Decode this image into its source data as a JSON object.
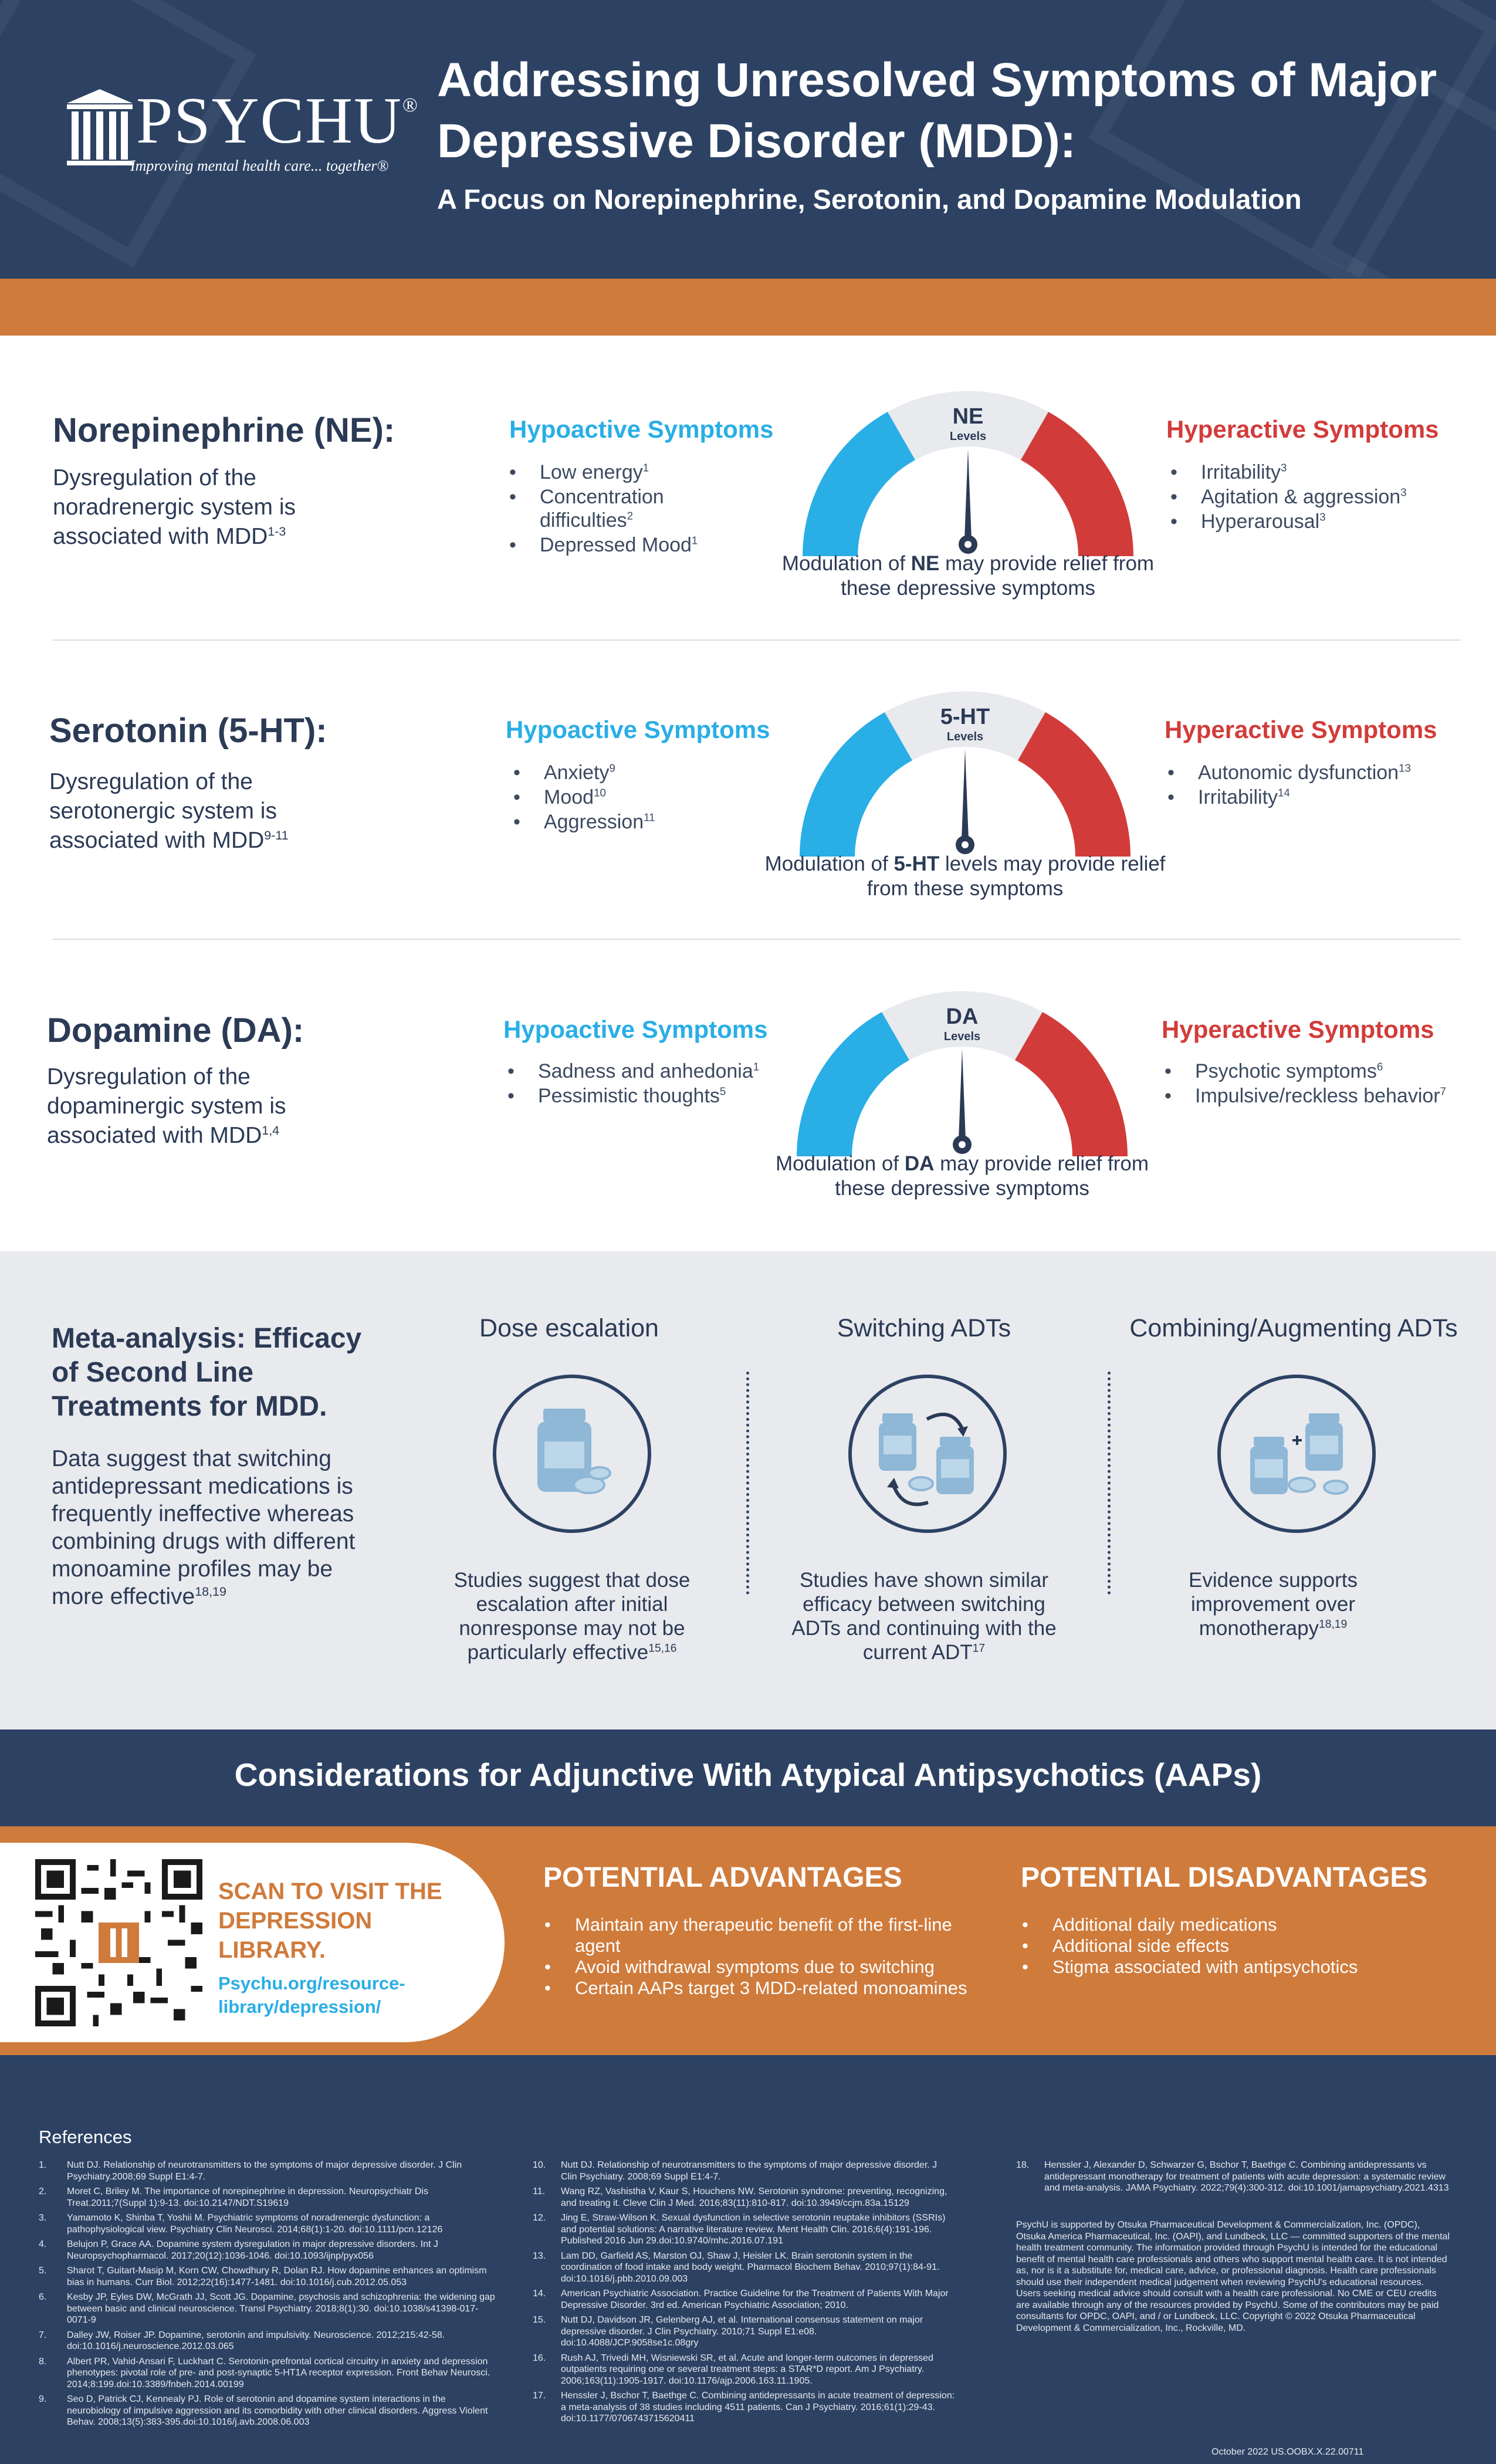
{
  "header": {
    "logo_name": "PSYCHU",
    "logo_registered": "®",
    "logo_tagline": "Improving mental health care... together®",
    "title": "Addressing Unresolved Symptoms of Major Depressive Disorder (MDD):",
    "subtitle": "A Focus on Norepinephrine, Serotonin, and Dopamine Modulation"
  },
  "colors": {
    "navy": "#2d4263",
    "orange": "#cf7b3c",
    "hypo_blue": "#29aee6",
    "hyper_red": "#d13c3a",
    "gray_panel": "#e8eaee"
  },
  "rows": [
    {
      "title": "Norepinephrine (NE):",
      "desc": "Dysregulation of the noradrenergic system is associated with MDD",
      "desc_sup": "1-3",
      "hypo_title": "Hypoactive Symptoms",
      "hypo": [
        {
          "text": "Low energy",
          "sup": "1"
        },
        {
          "text": "Concentration difficulties",
          "sup": "2"
        },
        {
          "text": "Depressed Mood",
          "sup": "1"
        }
      ],
      "gauge_label": "NE",
      "gauge_sublabel": "Levels",
      "caption_pre": "Modulation of ",
      "caption_bold": "NE",
      "caption_post": " may provide relief from these depressive symptoms",
      "hyper_title": "Hyperactive Symptoms",
      "hyper": [
        {
          "text": "Irritability",
          "sup": "3"
        },
        {
          "text": "Agitation & aggression",
          "sup": "3"
        },
        {
          "text": "Hyperarousal",
          "sup": "3"
        }
      ]
    },
    {
      "title": "Serotonin (5-HT):",
      "desc": "Dysregulation of the serotonergic system is associated with MDD",
      "desc_sup": "9-11",
      "hypo_title": "Hypoactive Symptoms",
      "hypo": [
        {
          "text": "Anxiety",
          "sup": "9"
        },
        {
          "text": "Mood",
          "sup": "10"
        },
        {
          "text": "Aggression",
          "sup": "11"
        }
      ],
      "gauge_label": "5-HT",
      "gauge_sublabel": "Levels",
      "caption_pre": "Modulation of ",
      "caption_bold": "5-HT",
      "caption_post": " levels may provide relief from these symptoms",
      "hyper_title": "Hyperactive Symptoms",
      "hyper": [
        {
          "text": "Autonomic dysfunction",
          "sup": "13"
        },
        {
          "text": "Irritability",
          "sup": "14"
        }
      ]
    },
    {
      "title": "Dopamine (DA):",
      "desc": "Dysregulation of the dopaminergic system is associated with MDD",
      "desc_sup": "1,4",
      "hypo_title": "Hypoactive Symptoms",
      "hypo": [
        {
          "text": "Sadness and anhedonia",
          "sup": "1"
        },
        {
          "text": "Pessimistic thoughts",
          "sup": "5"
        }
      ],
      "gauge_label": "DA",
      "gauge_sublabel": "Levels",
      "caption_pre": "Modulation of ",
      "caption_bold": "DA",
      "caption_post": " may provide relief from these depressive symptoms",
      "hyper_title": "Hyperactive Symptoms",
      "hyper": [
        {
          "text": "Psychotic symptoms",
          "sup": "6"
        },
        {
          "text": "Impulsive/reckless behavior",
          "sup": "7"
        }
      ]
    }
  ],
  "meta": {
    "title": "Meta-analysis: Efficacy of Second Line Treatments for MDD.",
    "text": "Data suggest that switching antidepressant medications is frequently ineffective whereas combining drugs with different monoamine profiles may be more effective",
    "text_sup": "18,19",
    "columns": [
      {
        "title": "Dose escalation",
        "icon": "pill-bottle-icon",
        "text": "Studies suggest that dose escalation after initial nonresponse may not be particularly effective",
        "sup": "15,16"
      },
      {
        "title": "Switching ADTs",
        "icon": "switch-medication-icon",
        "text": "Studies have shown similar efficacy between switching ADTs and continuing with the current ADT",
        "sup": "17"
      },
      {
        "title": "Combining/Augmenting ADTs",
        "icon": "combine-medication-icon",
        "text": "Evidence supports improvement over monotherapy",
        "sup": "18,19"
      }
    ]
  },
  "considerations": {
    "title": "Considerations for Adjunctive With Atypical Antipsychotics (AAPs)",
    "scan_title": "SCAN TO VISIT THE DEPRESSION LIBRARY.",
    "scan_link": "Psychu.org/resource-library/depression/",
    "advantages_title": "POTENTIAL ADVANTAGES",
    "advantages": [
      "Maintain any therapeutic benefit of the first-line agent",
      "Avoid withdrawal symptoms due to switching",
      "Certain AAPs target 3 MDD-related monoamines"
    ],
    "disadvantages_title": "POTENTIAL DISADVANTAGES",
    "disadvantages": [
      "Additional daily medications",
      "Additional side effects",
      "Stigma associated with antipsychotics"
    ]
  },
  "references": {
    "title": "References",
    "col1": [
      {
        "n": "1.",
        "text": "Nutt DJ. Relationship of neurotransmitters to the symptoms of major depressive disorder. J Clin Psychiatry.2008;69 Suppl E1:4-7."
      },
      {
        "n": "2.",
        "text": "Moret C, Briley M. The importance of norepinephrine in depression. Neuropsychiatr Dis Treat.2011;7(Suppl 1):9-13. doi:10.2147/NDT.S19619"
      },
      {
        "n": "3.",
        "text": "Yamamoto K, Shinba T, Yoshii M. Psychiatric symptoms of noradrenergic dysfunction: a pathophysiological view. Psychiatry Clin Neurosci. 2014;68(1):1-20. doi:10.1111/pcn.12126"
      },
      {
        "n": "4.",
        "text": "Belujon P, Grace AA. Dopamine system dysregulation in major depressive disorders. Int J Neuropsychopharmacol. 2017;20(12):1036-1046. doi:10.1093/ijnp/pyx056"
      },
      {
        "n": "5.",
        "text": "Sharot T, Guitart-Masip M, Korn CW, Chowdhury R, Dolan RJ. How dopamine enhances an optimism bias in humans. Curr Biol. 2012;22(16):1477-1481. doi:10.1016/j.cub.2012.05.053"
      },
      {
        "n": "6.",
        "text": "Kesby JP, Eyles DW, McGrath JJ, Scott JG. Dopamine, psychosis and schizophrenia: the widening gap between basic and clinical neuroscience. Transl Psychiatry. 2018;8(1):30. doi:10.1038/s41398-017-0071-9"
      },
      {
        "n": "7.",
        "text": "Dalley JW, Roiser JP. Dopamine, serotonin and impulsivity. Neuroscience. 2012;215:42-58. doi:10.1016/j.neuroscience.2012.03.065"
      },
      {
        "n": "8.",
        "text": "Albert PR, Vahid-Ansari F, Luckhart C. Serotonin-prefrontal cortical circuitry in anxiety and depression phenotypes: pivotal role of pre- and post-synaptic 5-HT1A receptor expression. Front Behav Neurosci. 2014;8:199.doi:10.3389/fnbeh.2014.00199"
      },
      {
        "n": "9.",
        "text": "Seo D, Patrick CJ, Kennealy PJ. Role of serotonin and dopamine system interactions in the neurobiology of impulsive aggression and its comorbidity with other clinical disorders. Aggress Violent Behav. 2008;13(5):383-395.doi:10.1016/j.avb.2008.06.003"
      }
    ],
    "col2": [
      {
        "n": "10.",
        "text": "Nutt DJ. Relationship of neurotransmitters to the symptoms of major depressive disorder. J Clin Psychiatry. 2008;69 Suppl E1:4-7."
      },
      {
        "n": "11.",
        "text": "Wang RZ, Vashistha V, Kaur S, Houchens NW. Serotonin syndrome: preventing, recognizing, and treating it. Cleve Clin J Med. 2016;83(11):810-817. doi:10.3949/ccjm.83a.15129"
      },
      {
        "n": "12.",
        "text": "Jing E, Straw-Wilson K. Sexual dysfunction in selective serotonin reuptake inhibitors (SSRIs) and potential solutions: A narrative literature review. Ment Health Clin. 2016;6(4):191-196. Published 2016 Jun 29.doi:10.9740/mhc.2016.07.191"
      },
      {
        "n": "13.",
        "text": "Lam DD, Garfield AS, Marston OJ, Shaw J, Heisler LK. Brain serotonin system in the coordination of food intake and body weight. Pharmacol Biochem Behav. 2010;97(1):84-91. doi:10.1016/j.pbb.2010.09.003"
      },
      {
        "n": "14.",
        "text": "American Psychiatric Association. Practice Guideline for the Treatment of Patients With Major Depressive Disorder. 3rd ed. American Psychiatric Association; 2010."
      },
      {
        "n": "15.",
        "text": "Nutt DJ, Davidson JR, Gelenberg AJ, et al. International consensus statement on major depressive disorder. J Clin Psychiatry. 2010;71 Suppl E1:e08. doi:10.4088/JCP.9058se1c.08gry"
      },
      {
        "n": "16.",
        "text": "Rush AJ, Trivedi MH, Wisniewski SR, et al. Acute and longer-term outcomes in depressed outpatients requiring one or several treatment steps: a STAR*D report. Am J Psychiatry. 2006;163(11):1905-1917. doi:10.1176/ajp.2006.163.11.1905."
      },
      {
        "n": "17.",
        "text": "Henssler J, Bschor T, Baethge C. Combining antidepressants in acute treatment of depression: a meta-analysis of 38 studies including 4511 patients. Can J Psychiatry. 2016;61(1):29-43. doi:10.1177/0706743715620411"
      }
    ],
    "col3": [
      {
        "n": "18.",
        "text": "Henssler J, Alexander D, Schwarzer G, Bschor T, Baethge C. Combining antidepressants vs antidepressant monotherapy for treatment of patients with acute depression: a systematic review and meta-analysis. JAMA Psychiatry. 2022;79(4):300-312. doi:10.1001/jamapsychiatry.2021.4313"
      }
    ],
    "disclaimer": "PsychU is supported by Otsuka Pharmaceutical Development & Commercialization, Inc. (OPDC), Otsuka America Pharmaceutical, Inc. (OAPI), and Lundbeck, LLC — committed supporters of the mental health treatment community. The information provided through PsychU is intended for the educational benefit of mental health care professionals and others who support mental health care. It is not intended as, nor is it a substitute for, medical care, advice, or professional diagnosis. Health care professionals should use their independent medical judgement when reviewing PsychU's educational resources. Users seeking medical advice should consult with a health care professional. No CME or CEU credits are available through any of the resources provided by PsychU. Some of the contributors may be paid consultants for OPDC, OAPI, and / or Lundbeck, LLC. Copyright © 2022 Otsuka Pharmaceutical Development & Commercialization, Inc., Rockville, MD.",
    "footer_code": "October 2022   US.OOBX.X.22.00711"
  }
}
